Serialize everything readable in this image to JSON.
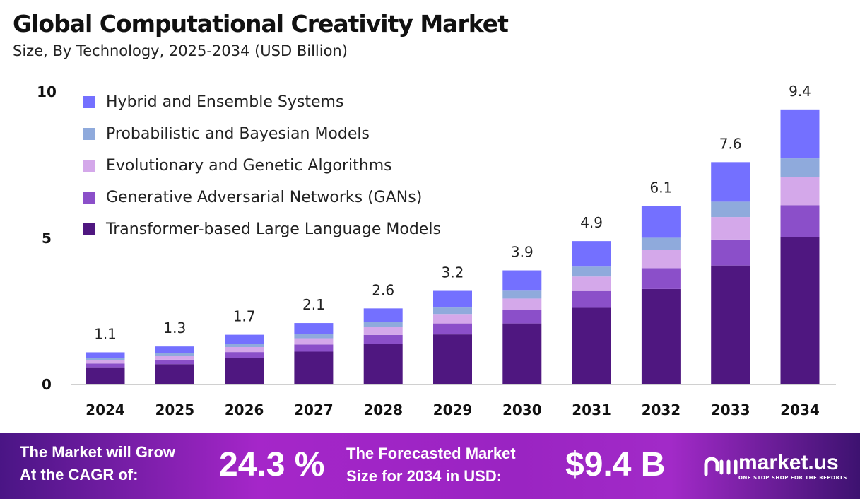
{
  "chart_data": {
    "type": "bar",
    "stacked": true,
    "title": "Global Computational Creativity Market",
    "subtitle": "Size, By Technology, 2025-2034 (USD Billion)",
    "categories": [
      "2024",
      "2025",
      "2026",
      "2027",
      "2028",
      "2029",
      "2030",
      "2031",
      "2032",
      "2033",
      "2034"
    ],
    "totals": [
      1.1,
      1.3,
      1.7,
      2.1,
      2.6,
      3.2,
      3.9,
      4.9,
      6.1,
      7.6,
      9.4
    ],
    "series": [
      {
        "name": "Transformer-based Large Language Models",
        "color": "#4F1780",
        "share": 0.535
      },
      {
        "name": "Generative Adversarial Networks (GANs)",
        "color": "#8B4FC9",
        "share": 0.117
      },
      {
        "name": "Evolutionary and Genetic Algorithms",
        "color": "#D4A8EA",
        "share": 0.101
      },
      {
        "name": "Probabilistic and Bayesian Models",
        "color": "#8FAADC",
        "share": 0.069
      },
      {
        "name": "Hybrid and Ensemble Systems",
        "color": "#7470FF",
        "share": 0.178
      }
    ],
    "yticks": [
      "0",
      "5",
      "10"
    ],
    "ylim": [
      0,
      10
    ],
    "legend": "top-left"
  },
  "banner": {
    "cagr_label_1": "The Market will Grow",
    "cagr_label_2": "At the CAGR of:",
    "cagr_value": "24.3 %",
    "forecast_label_1": "The Forecasted Market",
    "forecast_label_2": "Size for 2034 in USD:",
    "forecast_value": "$9.4 B",
    "logo_name": "market.us",
    "logo_tagline": "ONE STOP SHOP FOR THE REPORTS"
  }
}
